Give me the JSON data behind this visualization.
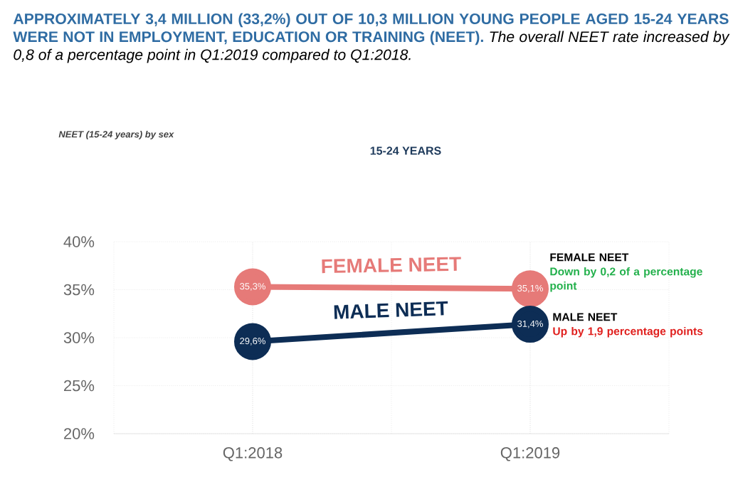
{
  "chart_data": {
    "type": "line",
    "title": "APPROXIMATELY 3,4 MILLION (33,2%) OUT OF 10,3 MILLION YOUNG PEOPLE AGED 15-24 YEARS WERE NOT IN EMPLOYMENT, EDUCATION OR TRAINING (NEET).",
    "subtitle": "The overall NEET rate increased by 0,8 of a percentage point in Q1:2019 compared to Q1:2018.",
    "annotations": [
      "NEET (15-24 years) by sex",
      "15-24 YEARS",
      "FEMALE NEET",
      "Down by 0,2 of a percentage point",
      "MALE NEET",
      "Up by 1,9 percentage points"
    ],
    "categories": [
      "Q1:2018",
      "Q1:2019"
    ],
    "series": [
      {
        "name": "FEMALE NEET",
        "color": "#e67a78",
        "values": [
          35.3,
          35.1
        ],
        "value_labels": [
          "35,3%",
          "35,1%"
        ]
      },
      {
        "name": "MALE NEET",
        "color": "#0d2d55",
        "values": [
          29.6,
          31.4
        ],
        "value_labels": [
          "29,6%",
          "31,4%"
        ]
      }
    ],
    "ylim": [
      20,
      40
    ],
    "yticks": [
      {
        "value": 20,
        "label": "20%"
      },
      {
        "value": 25,
        "label": "25%"
      },
      {
        "value": 30,
        "label": "30%"
      },
      {
        "value": 35,
        "label": "35%"
      },
      {
        "value": 40,
        "label": "40%"
      }
    ],
    "grid": true,
    "marker": "circle",
    "line_style": "solid"
  }
}
